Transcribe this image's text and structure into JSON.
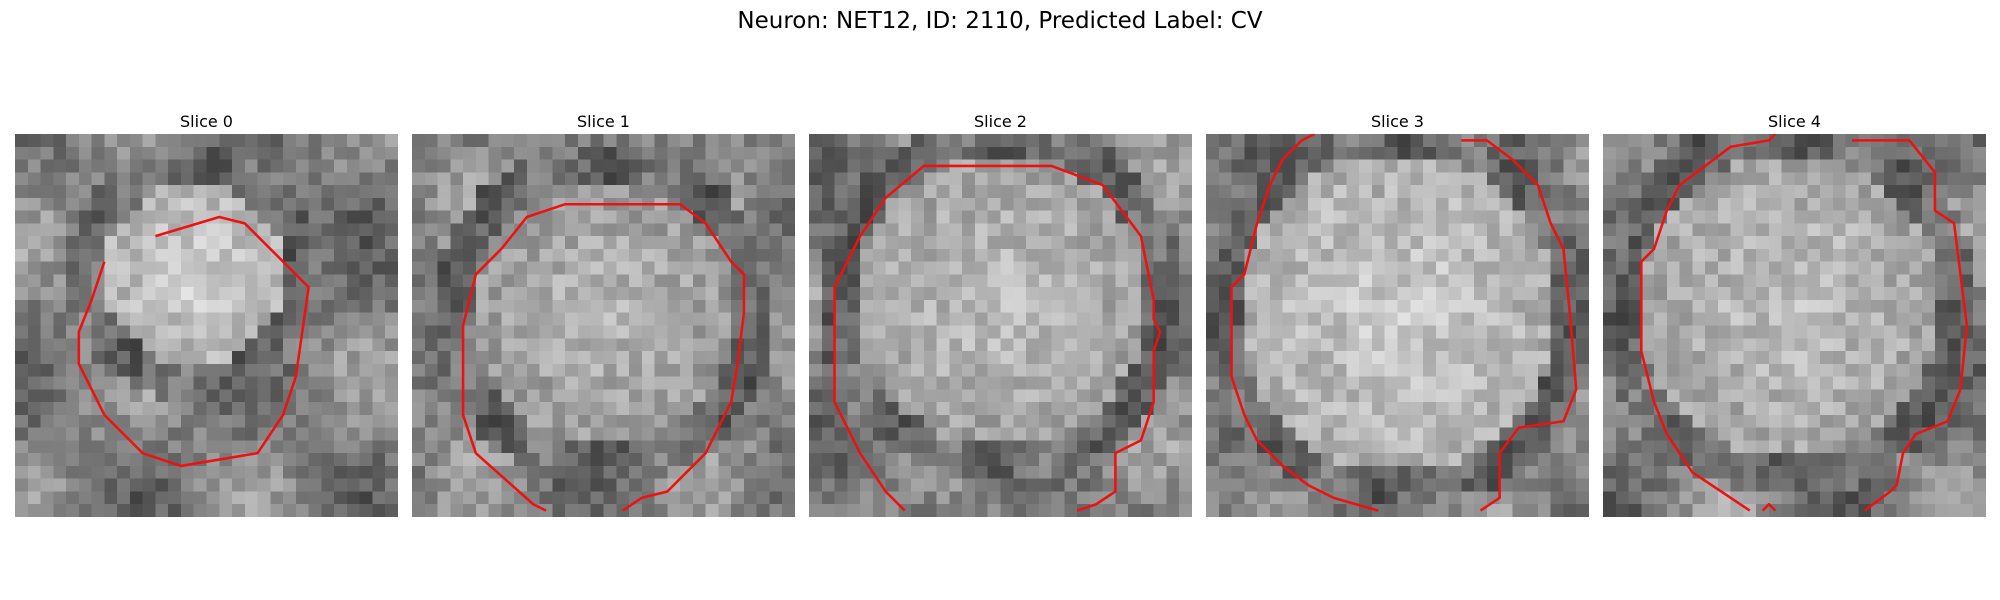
{
  "title": "Neuron: NET12, ID: 2110, Predicted Label: CV",
  "colors": {
    "background": "#ffffff",
    "contour": "#ee1111",
    "colormap": "grayscale"
  },
  "panels": [
    {
      "title": "Slice 0",
      "image": {
        "grid": 30,
        "blob_cx": 14,
        "blob_cy": 11,
        "blob_r": 7,
        "blob_brightness": 0.82,
        "seed": 11
      },
      "contours": [
        [
          [
            11.0,
            8.0
          ],
          [
            16.0,
            6.5
          ],
          [
            18.0,
            7.0
          ],
          [
            23.0,
            12.0
          ],
          [
            22.5,
            15.5
          ],
          [
            22.0,
            19.0
          ],
          [
            21.0,
            22.0
          ],
          [
            19.0,
            25.0
          ],
          [
            13.0,
            26.0
          ],
          [
            10.0,
            25.0
          ],
          [
            7.0,
            22.0
          ],
          [
            5.0,
            18.0
          ],
          [
            5.0,
            15.5
          ],
          [
            6.0,
            13.0
          ],
          [
            7.0,
            10.0
          ]
        ]
      ]
    },
    {
      "title": "Slice 1",
      "image": {
        "grid": 30,
        "blob_cx": 15,
        "blob_cy": 14,
        "blob_r": 10.5,
        "blob_brightness": 0.72,
        "seed": 22
      },
      "contours": [
        [
          [
            10.5,
            29.5
          ],
          [
            9.5,
            29.0
          ],
          [
            5.0,
            25.0
          ],
          [
            4.0,
            22.0
          ],
          [
            4.0,
            15.0
          ],
          [
            5.0,
            11.0
          ],
          [
            7.0,
            9.0
          ],
          [
            9.0,
            6.5
          ],
          [
            12.0,
            5.5
          ],
          [
            21.0,
            5.5
          ],
          [
            23.0,
            7.0
          ],
          [
            25.0,
            10.0
          ],
          [
            26.0,
            11.0
          ],
          [
            26.0,
            14.0
          ],
          [
            25.5,
            18.0
          ],
          [
            25.0,
            21.0
          ],
          [
            23.0,
            25.0
          ],
          [
            21.0,
            27.0
          ],
          [
            20.0,
            28.0
          ],
          [
            18.0,
            28.5
          ],
          [
            16.5,
            29.5
          ]
        ]
      ]
    },
    {
      "title": "Slice 2",
      "image": {
        "grid": 30,
        "blob_cx": 15,
        "blob_cy": 13,
        "blob_r": 11.5,
        "blob_brightness": 0.75,
        "seed": 33
      },
      "contours": [
        [
          [
            7.5,
            29.5
          ],
          [
            6.0,
            28.0
          ],
          [
            4.0,
            25.0
          ],
          [
            2.0,
            21.0
          ],
          [
            2.0,
            12.0
          ],
          [
            3.0,
            10.0
          ],
          [
            4.0,
            8.0
          ],
          [
            6.0,
            5.0
          ],
          [
            9.0,
            2.5
          ],
          [
            19.0,
            2.5
          ],
          [
            23.0,
            4.0
          ],
          [
            26.0,
            8.0
          ],
          [
            27.0,
            13.0
          ],
          [
            27.0,
            14.5
          ],
          [
            27.5,
            15.5
          ],
          [
            27.0,
            17.0
          ],
          [
            27.0,
            21.0
          ],
          [
            26.0,
            24.0
          ],
          [
            24.0,
            25.0
          ],
          [
            24.0,
            28.0
          ],
          [
            22.5,
            29.0
          ],
          [
            21.0,
            29.5
          ]
        ]
      ]
    },
    {
      "title": "Slice 3",
      "image": {
        "grid": 30,
        "blob_cx": 15,
        "blob_cy": 14,
        "blob_r": 12.5,
        "blob_brightness": 0.8,
        "seed": 44
      },
      "contours": [
        [
          [
            8.5,
            0.0
          ],
          [
            7.5,
            0.5
          ],
          [
            6.0,
            2.0
          ],
          [
            5.0,
            4.0
          ],
          [
            4.0,
            7.0
          ],
          [
            3.0,
            11.0
          ],
          [
            2.0,
            12.0
          ],
          [
            2.0,
            19.0
          ],
          [
            3.0,
            22.0
          ],
          [
            4.0,
            24.0
          ],
          [
            6.0,
            26.0
          ],
          [
            8.0,
            27.5
          ],
          [
            10.0,
            28.5
          ],
          [
            13.5,
            29.5
          ]
        ],
        [
          [
            20.0,
            0.5
          ],
          [
            22.0,
            0.5
          ],
          [
            24.0,
            2.0
          ],
          [
            26.0,
            4.0
          ],
          [
            27.0,
            7.0
          ],
          [
            28.0,
            9.0
          ],
          [
            28.5,
            14.0
          ],
          [
            29.0,
            20.0
          ],
          [
            28.0,
            22.5
          ],
          [
            24.5,
            23.0
          ],
          [
            23.0,
            25.0
          ],
          [
            23.0,
            28.5
          ],
          [
            21.5,
            29.5
          ]
        ]
      ]
    },
    {
      "title": "Slice 4",
      "image": {
        "grid": 30,
        "blob_cx": 14.5,
        "blob_cy": 13.5,
        "blob_r": 12,
        "blob_brightness": 0.76,
        "seed": 55
      },
      "contours": [
        [
          [
            13.5,
            0.0
          ],
          [
            13.0,
            0.5
          ],
          [
            10.0,
            1.0
          ],
          [
            8.0,
            2.5
          ],
          [
            6.0,
            4.0
          ],
          [
            5.0,
            6.0
          ],
          [
            4.0,
            9.0
          ],
          [
            3.0,
            10.0
          ],
          [
            3.0,
            17.0
          ],
          [
            3.5,
            19.0
          ],
          [
            4.0,
            21.0
          ],
          [
            5.0,
            23.5
          ],
          [
            7.0,
            26.5
          ],
          [
            10.0,
            28.5
          ],
          [
            11.5,
            29.5
          ]
        ],
        [
          [
            12.5,
            29.5
          ],
          [
            13.0,
            29.0
          ],
          [
            13.5,
            29.5
          ]
        ],
        [
          [
            19.5,
            0.5
          ],
          [
            24.0,
            0.5
          ],
          [
            26.0,
            3.0
          ],
          [
            26.0,
            6.0
          ],
          [
            27.5,
            7.0
          ],
          [
            28.0,
            11.0
          ],
          [
            28.5,
            15.0
          ],
          [
            28.0,
            20.0
          ],
          [
            27.0,
            22.5
          ],
          [
            24.5,
            23.5
          ],
          [
            23.5,
            25.0
          ],
          [
            23.0,
            27.5
          ],
          [
            22.5,
            28.0
          ],
          [
            20.5,
            29.5
          ]
        ]
      ]
    }
  ]
}
